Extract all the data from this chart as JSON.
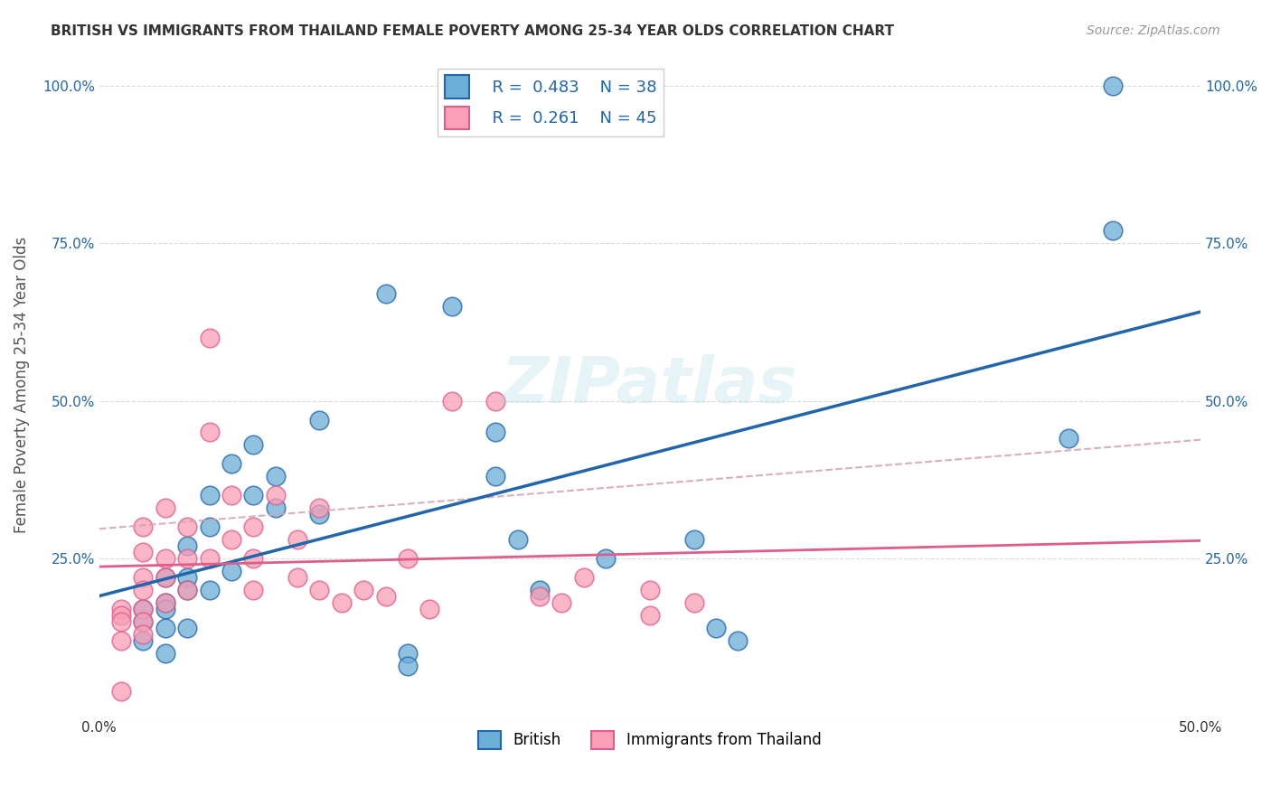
{
  "title": "BRITISH VS IMMIGRANTS FROM THAILAND FEMALE POVERTY AMONG 25-34 YEAR OLDS CORRELATION CHART",
  "source": "Source: ZipAtlas.com",
  "ylabel": "Female Poverty Among 25-34 Year Olds",
  "xlim": [
    0.0,
    0.5
  ],
  "ylim": [
    0.0,
    1.05
  ],
  "legend_british_R": "0.483",
  "legend_british_N": "38",
  "legend_thai_R": "0.261",
  "legend_thai_N": "45",
  "british_color": "#6baed6",
  "thai_color": "#fa9fb5",
  "british_line_color": "#2166ac",
  "thai_line_color": "#e05c8a",
  "thai_dash_color": "#d4a0b0",
  "watermark": "ZIPatlas",
  "british_x": [
    0.02,
    0.02,
    0.02,
    0.03,
    0.03,
    0.03,
    0.03,
    0.03,
    0.04,
    0.04,
    0.04,
    0.04,
    0.05,
    0.05,
    0.05,
    0.06,
    0.06,
    0.07,
    0.07,
    0.08,
    0.08,
    0.1,
    0.1,
    0.13,
    0.14,
    0.14,
    0.16,
    0.18,
    0.18,
    0.19,
    0.2,
    0.23,
    0.27,
    0.28,
    0.29,
    0.44,
    0.46,
    0.46
  ],
  "british_y": [
    0.17,
    0.15,
    0.12,
    0.22,
    0.18,
    0.17,
    0.14,
    0.1,
    0.27,
    0.22,
    0.2,
    0.14,
    0.35,
    0.3,
    0.2,
    0.4,
    0.23,
    0.43,
    0.35,
    0.38,
    0.33,
    0.47,
    0.32,
    0.67,
    0.1,
    0.08,
    0.65,
    0.45,
    0.38,
    0.28,
    0.2,
    0.25,
    0.28,
    0.14,
    0.12,
    0.44,
    0.77,
    1.0
  ],
  "thai_x": [
    0.01,
    0.01,
    0.01,
    0.01,
    0.01,
    0.02,
    0.02,
    0.02,
    0.02,
    0.02,
    0.02,
    0.02,
    0.03,
    0.03,
    0.03,
    0.03,
    0.04,
    0.04,
    0.04,
    0.05,
    0.05,
    0.05,
    0.06,
    0.06,
    0.07,
    0.07,
    0.07,
    0.08,
    0.09,
    0.09,
    0.1,
    0.1,
    0.11,
    0.12,
    0.13,
    0.14,
    0.15,
    0.16,
    0.18,
    0.2,
    0.21,
    0.22,
    0.25,
    0.25,
    0.27
  ],
  "thai_y": [
    0.17,
    0.16,
    0.15,
    0.12,
    0.04,
    0.3,
    0.26,
    0.22,
    0.2,
    0.17,
    0.15,
    0.13,
    0.33,
    0.25,
    0.22,
    0.18,
    0.3,
    0.25,
    0.2,
    0.6,
    0.45,
    0.25,
    0.35,
    0.28,
    0.3,
    0.25,
    0.2,
    0.35,
    0.28,
    0.22,
    0.33,
    0.2,
    0.18,
    0.2,
    0.19,
    0.25,
    0.17,
    0.5,
    0.5,
    0.19,
    0.18,
    0.22,
    0.2,
    0.16,
    0.18
  ]
}
